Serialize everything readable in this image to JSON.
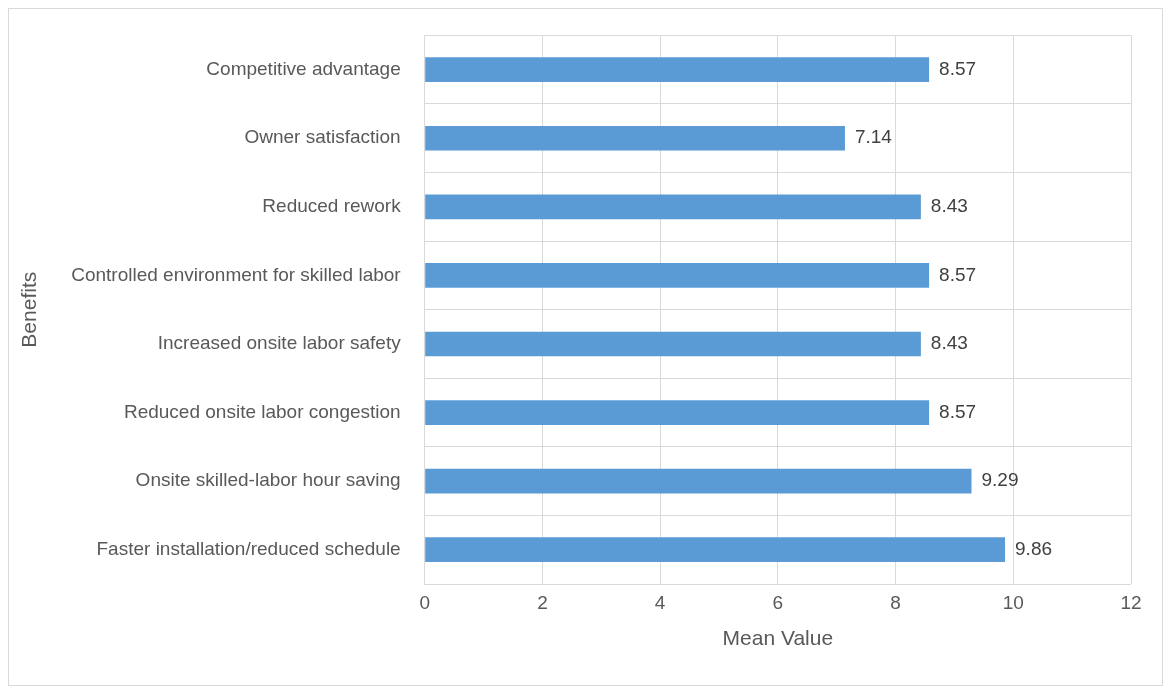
{
  "chart_data": {
    "type": "bar",
    "orientation": "horizontal",
    "xlabel": "Mean Value",
    "ylabel": "Benefits",
    "categories": [
      "Competitive advantage",
      "Owner satisfaction",
      "Reduced rework",
      "Controlled environment for skilled labor",
      "Increased onsite labor safety",
      "Reduced onsite labor congestion",
      "Onsite skilled-labor hour saving",
      "Faster installation/reduced schedule"
    ],
    "values": [
      8.57,
      7.14,
      8.43,
      8.57,
      8.43,
      8.57,
      9.29,
      9.86
    ],
    "color": "#5b9bd5",
    "xlim": [
      0,
      12
    ],
    "xticks": [
      0,
      2,
      4,
      6,
      8,
      10,
      12
    ],
    "grid": true,
    "data_labels": true
  }
}
